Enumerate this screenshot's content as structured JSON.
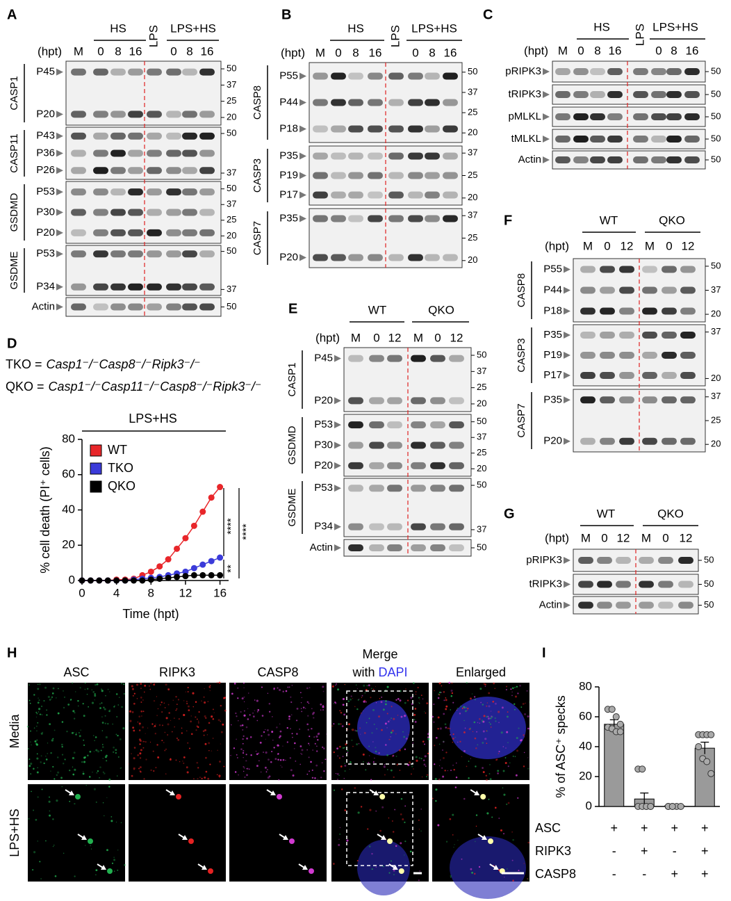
{
  "panel_labels": [
    "A",
    "B",
    "C",
    "D",
    "E",
    "F",
    "G",
    "H",
    "I"
  ],
  "blots": [
    {
      "hpt": "(hpt)",
      "groups": [
        "HS",
        "LPS",
        "LPS+HS"
      ],
      "lanes": [
        "M",
        "0",
        "8",
        "16",
        "0",
        "8",
        "16"
      ],
      "rows": [
        {
          "name": "CASP1",
          "bands": [
            "P45",
            "P20"
          ],
          "mw": [
            50,
            37,
            25,
            20
          ]
        },
        {
          "name": "CASP11",
          "bands": [
            "P43",
            "P36",
            "P26"
          ],
          "mw": [
            50,
            37
          ]
        },
        {
          "name": "GSDMD",
          "bands": [
            "P53",
            "P30",
            "P20"
          ],
          "mw": [
            50,
            37,
            25,
            20
          ]
        },
        {
          "name": "GSDME",
          "bands": [
            "P53",
            "P34"
          ],
          "mw": [
            50,
            37
          ]
        },
        {
          "name": "Actin",
          "mw": [
            50
          ]
        }
      ]
    },
    {
      "hpt": "(hpt)",
      "groups": [
        "HS",
        "LPS",
        "LPS+HS"
      ],
      "lanes": [
        "M",
        "0",
        "8",
        "16",
        "0",
        "8",
        "16"
      ],
      "rows": [
        {
          "name": "CASP8",
          "bands": [
            "P55",
            "P44",
            "P18"
          ],
          "mw": [
            50,
            37,
            25,
            20
          ]
        },
        {
          "name": "CASP3",
          "bands": [
            "P35",
            "P19",
            "P17"
          ],
          "mw": [
            37,
            25,
            20
          ]
        },
        {
          "name": "CASP7",
          "bands": [
            "P35",
            "P20"
          ],
          "mw": [
            37,
            25,
            20
          ]
        }
      ]
    },
    {
      "hpt": "(hpt)",
      "groups": [
        "HS",
        "LPS",
        "LPS+HS"
      ],
      "lanes": [
        "M",
        "0",
        "8",
        "16",
        "0",
        "8",
        "16"
      ],
      "rows": [
        {
          "name": "pRIPK3",
          "mw": [
            50
          ]
        },
        {
          "name": "tRIPK3",
          "mw": [
            50
          ]
        },
        {
          "name": "pMLKL",
          "mw": [
            50
          ]
        },
        {
          "name": "tMLKL",
          "mw": [
            50
          ]
        },
        {
          "name": "Actin",
          "mw": [
            50
          ]
        }
      ]
    },
    {
      "hpt": "(hpt)",
      "groups": [
        "WT",
        "QKO"
      ],
      "lanes": [
        "M",
        "0",
        "12",
        "M",
        "0",
        "12"
      ],
      "rows": [
        {
          "name": "CASP1",
          "bands": [
            "P45",
            "P20"
          ],
          "mw": [
            50,
            37,
            25,
            20
          ]
        },
        {
          "name": "GSDMD",
          "bands": [
            "P53",
            "P30",
            "P20"
          ],
          "mw": [
            50,
            37,
            25,
            20
          ]
        },
        {
          "name": "GSDME",
          "bands": [
            "P53",
            "P34"
          ],
          "mw": [
            50,
            37
          ]
        },
        {
          "name": "Actin",
          "mw": [
            50
          ]
        }
      ]
    },
    {
      "hpt": "(hpt)",
      "groups": [
        "WT",
        "QKO"
      ],
      "lanes": [
        "M",
        "0",
        "12",
        "M",
        "0",
        "12"
      ],
      "rows": [
        {
          "name": "CASP8",
          "bands": [
            "P55",
            "P44",
            "P18"
          ],
          "mw": [
            50,
            37,
            20
          ]
        },
        {
          "name": "CASP3",
          "bands": [
            "P35",
            "P19",
            "P17"
          ],
          "mw": [
            37,
            20
          ]
        },
        {
          "name": "CASP7",
          "bands": [
            "P35",
            "P20"
          ],
          "mw": [
            37,
            25,
            20
          ]
        }
      ]
    },
    {
      "hpt": "(hpt)",
      "groups": [
        "WT",
        "QKO"
      ],
      "lanes": [
        "M",
        "0",
        "12",
        "M",
        "0",
        "12"
      ],
      "rows": [
        {
          "name": "pRIPK3",
          "mw": [
            50
          ]
        },
        {
          "name": "tRIPK3",
          "mw": [
            50
          ]
        },
        {
          "name": "Actin",
          "mw": [
            50
          ]
        }
      ]
    }
  ],
  "definitions": [
    {
      "label": "TKO =",
      "genotype": "Casp1⁻/⁻Casp8⁻/⁻Ripk3⁻/⁻"
    },
    {
      "label": "QKO =",
      "genotype": "Casp1⁻/⁻Casp11⁻/⁻Casp8⁻/⁻Ripk3⁻/⁻"
    }
  ],
  "chart_data": [
    {
      "type": "line",
      "title": "LPS+HS",
      "xlabel": "Time (hpt)",
      "ylabel": "% cell death (PI⁺ cells)",
      "x": [
        0,
        1,
        2,
        3,
        4,
        5,
        6,
        7,
        8,
        9,
        10,
        11,
        12,
        13,
        14,
        15,
        16
      ],
      "series": [
        {
          "name": "WT",
          "color": "#e8262a",
          "values": [
            0,
            0,
            0,
            0,
            0.5,
            0.5,
            1,
            3,
            5,
            8,
            12,
            18,
            24,
            31,
            39,
            47,
            53
          ]
        },
        {
          "name": "TKO",
          "color": "#3b3bd9",
          "values": [
            0,
            0,
            0,
            0,
            0,
            0,
            0.5,
            1,
            1.5,
            2,
            3,
            4,
            5,
            7,
            9,
            11,
            13
          ]
        },
        {
          "name": "QKO",
          "color": "#000000",
          "values": [
            0,
            0,
            0,
            0,
            0,
            0,
            0,
            0,
            0.5,
            1,
            1.5,
            2,
            2.5,
            3,
            3,
            3,
            3
          ]
        }
      ],
      "xlim": [
        0,
        17
      ],
      "ylim": [
        0,
        80
      ],
      "xticks": [
        0,
        4,
        8,
        12,
        16
      ],
      "yticks": [
        0,
        20,
        40,
        60,
        80
      ],
      "legend": "upper left",
      "annotations": [
        "****",
        "**",
        "****"
      ]
    },
    {
      "type": "bar",
      "ylabel": "% of ASC⁺ specks",
      "categories": [
        null,
        null,
        null,
        null
      ],
      "values": [
        55,
        5,
        0.5,
        39
      ],
      "errors": [
        3,
        4,
        0.3,
        4
      ],
      "color": "#9a9a9a",
      "points": [
        [
          65,
          65,
          60,
          55,
          53,
          52,
          50,
          50
        ],
        [
          25,
          25,
          0,
          0,
          0,
          0,
          0,
          0
        ],
        [
          0,
          0,
          0,
          0,
          0,
          0
        ],
        [
          48,
          48,
          48,
          48,
          40,
          32,
          30,
          22
        ]
      ],
      "ylim": [
        0,
        80
      ],
      "yticks": [
        0,
        20,
        40,
        60,
        80
      ],
      "conditions": [
        {
          "name": "ASC",
          "values": [
            "+",
            "+",
            "+",
            "+"
          ]
        },
        {
          "name": "RIPK3",
          "values": [
            "-",
            "+",
            "-",
            "+"
          ]
        },
        {
          "name": "CASP8",
          "values": [
            "-",
            "-",
            "+",
            "+"
          ]
        }
      ]
    }
  ],
  "microscopy": {
    "columns": [
      "ASC",
      "RIPK3",
      "CASP8"
    ],
    "merge": {
      "title": "Merge",
      "with": "with",
      "dapi": "DAPI"
    },
    "enlarged": "Enlarged",
    "rows": [
      "Media",
      "LPS+HS"
    ]
  }
}
